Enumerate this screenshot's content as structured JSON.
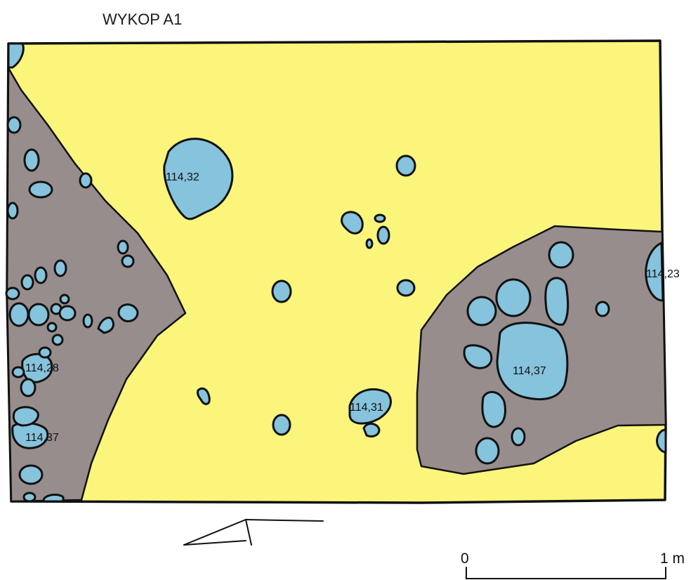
{
  "title": "WYKOP A1",
  "elevations": {
    "e1": "114,32",
    "e2": "114,23",
    "e3": "114,28",
    "e4": "114,37",
    "e5": "114,31",
    "e6": "114,37"
  },
  "scale": {
    "start": "0",
    "end": "1 m"
  },
  "colors": {
    "sand": "#fbf57b",
    "clay": "#978d8d",
    "stone": "#86c3dc",
    "outline": "#111111"
  },
  "legend_symbols": [
    "north-arrow-icon"
  ]
}
